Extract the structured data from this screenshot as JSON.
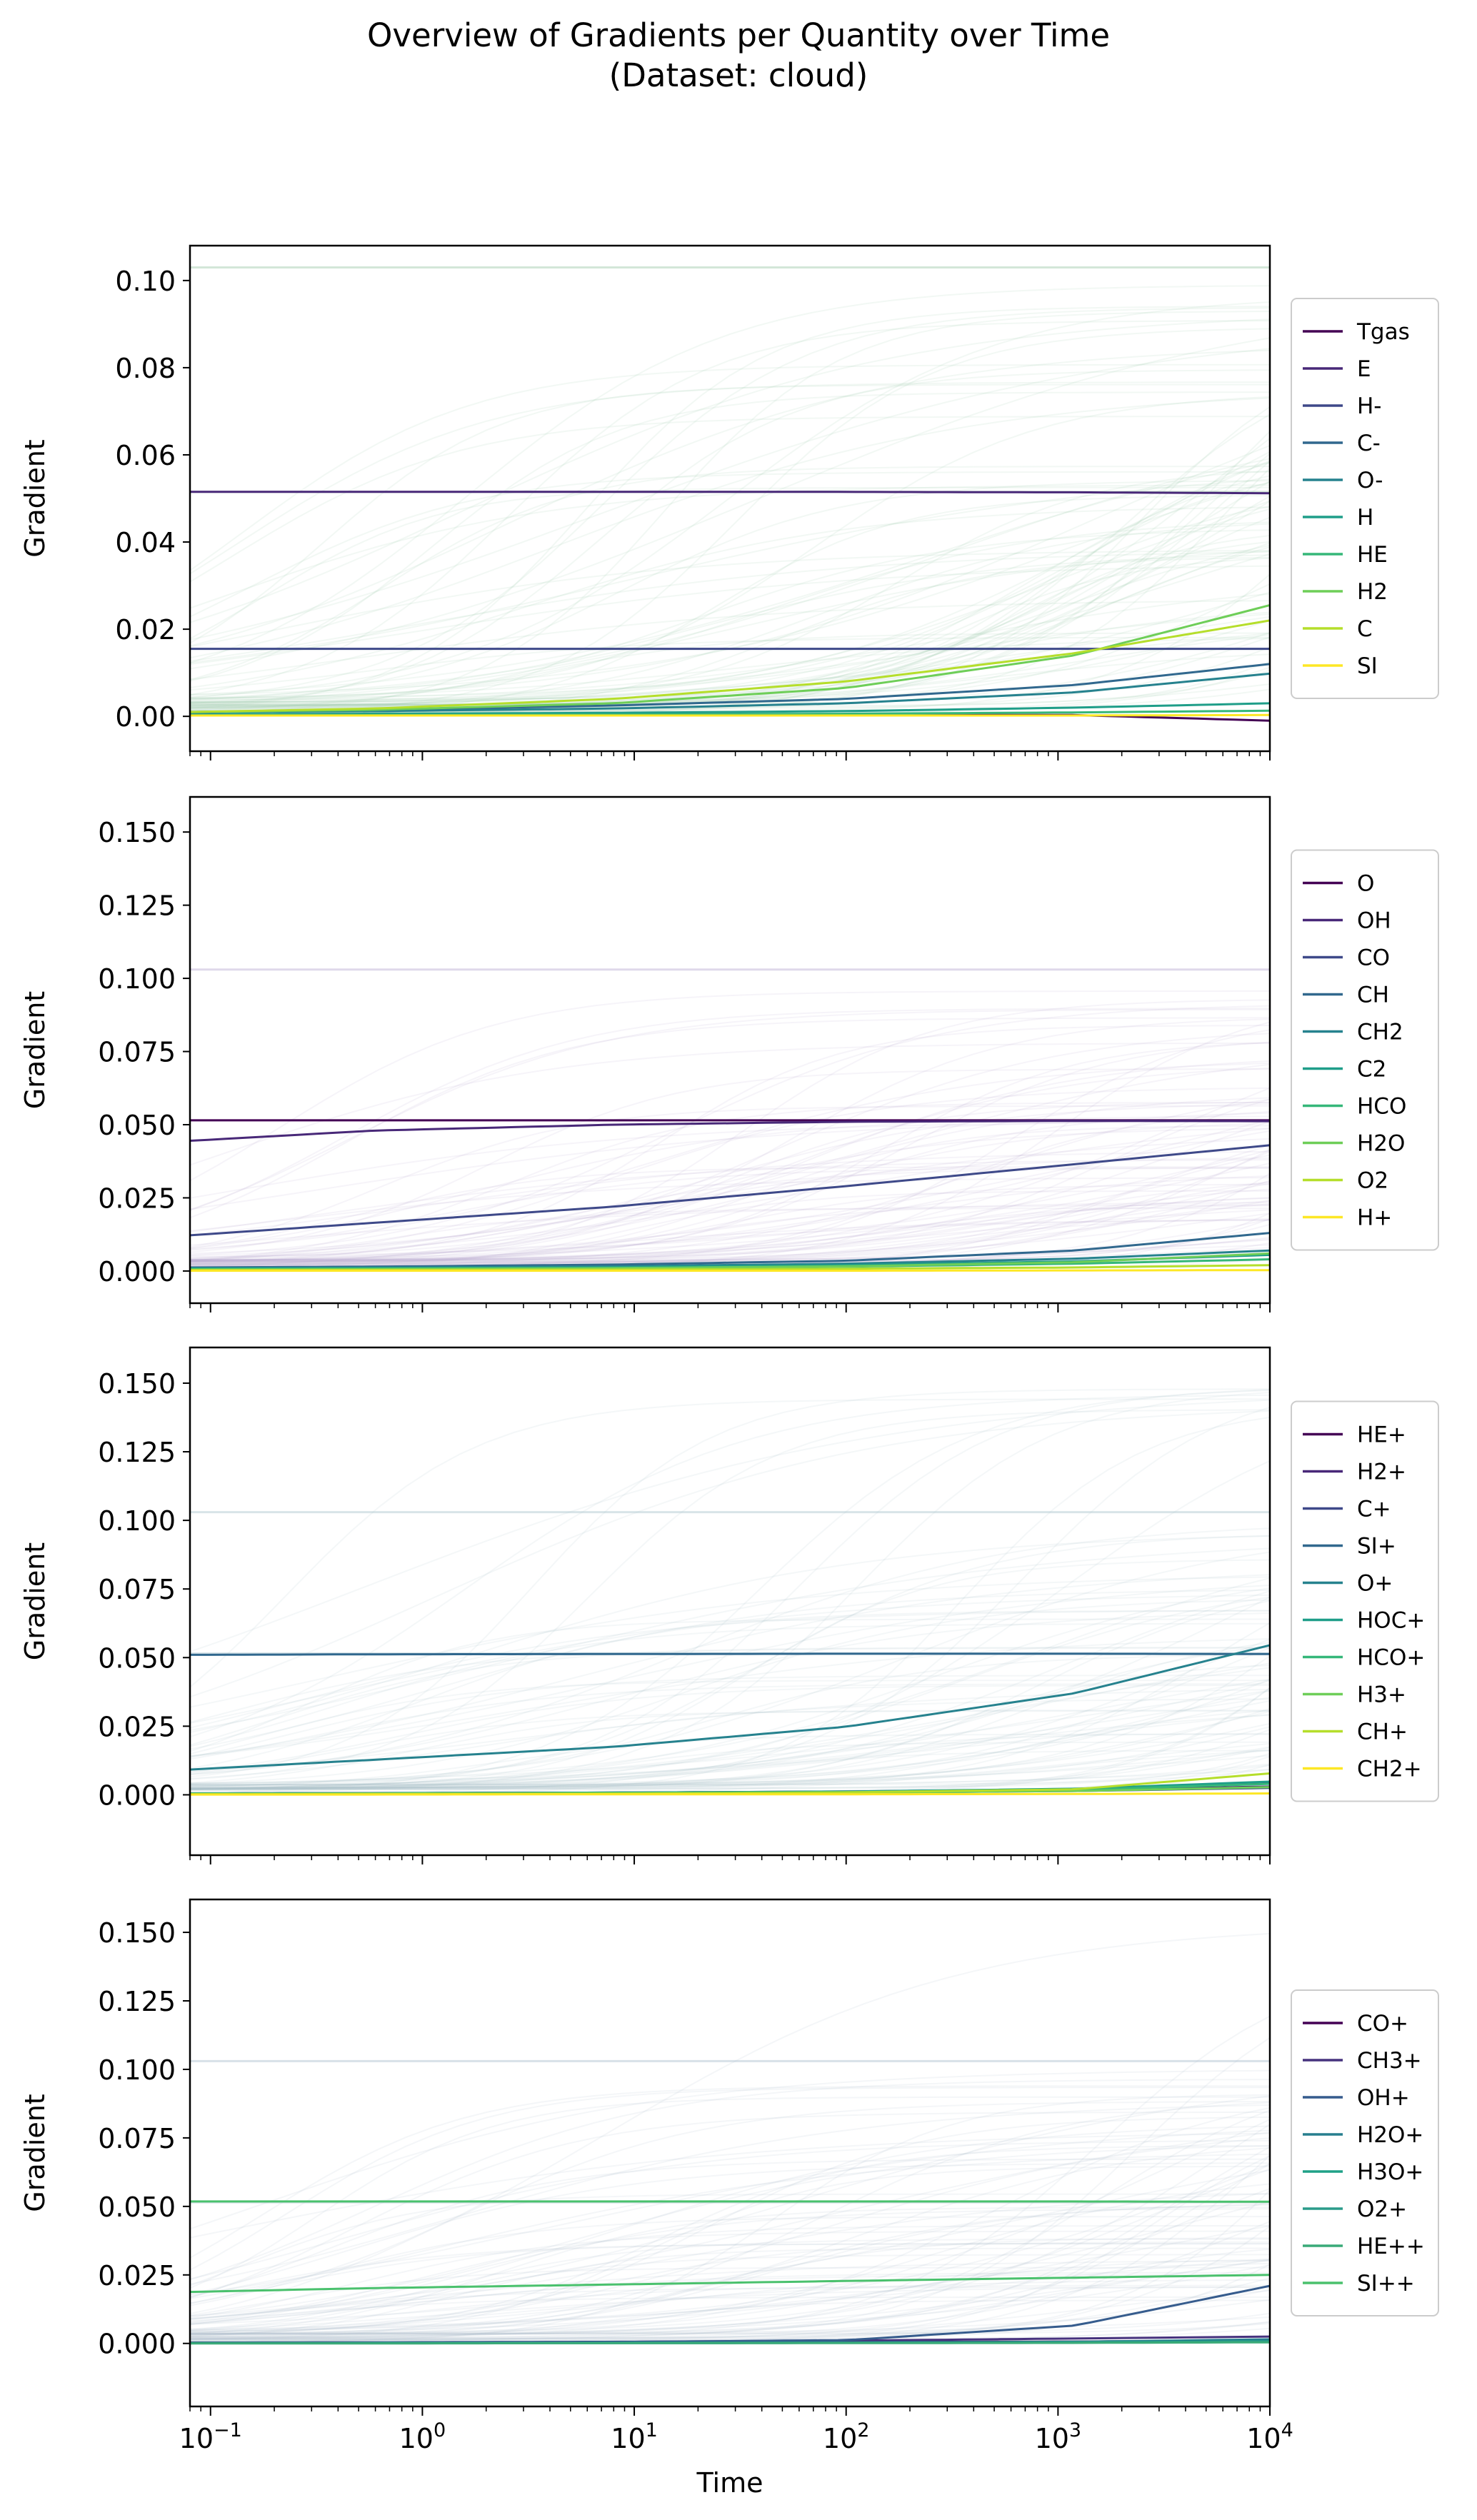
{
  "figure": {
    "title_line1": "Overview of Gradients per Quantity over Time",
    "title_line2": "(Dataset: cloud)",
    "xlabel": "Time",
    "ylabel": "Gradient",
    "x_scale": "log",
    "x_tick_exponents": [
      -1,
      0,
      1,
      2,
      3,
      4
    ],
    "x_tick_base": "10"
  },
  "chart_data": [
    {
      "type": "line",
      "xlim": [
        0.08,
        10000
      ],
      "ylim": [
        -0.008,
        0.108
      ],
      "yticks": [
        "0.00",
        "0.02",
        "0.04",
        "0.06",
        "0.08",
        "0.10"
      ],
      "ytick_values": [
        0,
        0.02,
        0.04,
        0.06,
        0.08,
        0.1
      ],
      "background_band_max": 0.103,
      "background_color": "#9ec8a8",
      "legend_position": "right",
      "series": [
        {
          "name": "Tgas",
          "color": "#440154",
          "values": [
            0.0005,
            0.0005,
            0.0005,
            0.0004,
            0.0003,
            -0.001
          ]
        },
        {
          "name": "E",
          "color": "#482878",
          "values": [
            0.0515,
            0.0515,
            0.0515,
            0.0515,
            0.0514,
            0.0512
          ]
        },
        {
          "name": "H-",
          "color": "#3e4989",
          "values": [
            0.0155,
            0.0155,
            0.0155,
            0.0155,
            0.0155,
            0.0155
          ]
        },
        {
          "name": "C-",
          "color": "#31688e",
          "values": [
            0.001,
            0.0014,
            0.0025,
            0.004,
            0.0072,
            0.012
          ]
        },
        {
          "name": "O-",
          "color": "#26828e",
          "values": [
            0.001,
            0.0012,
            0.0018,
            0.003,
            0.0055,
            0.0098
          ]
        },
        {
          "name": "H",
          "color": "#1f9e89",
          "values": [
            0.0005,
            0.0006,
            0.0008,
            0.0012,
            0.002,
            0.003
          ]
        },
        {
          "name": "HE",
          "color": "#35b779",
          "values": [
            0.0002,
            0.0003,
            0.0004,
            0.0006,
            0.0009,
            0.0013
          ]
        },
        {
          "name": "H2",
          "color": "#6ece58",
          "values": [
            0.001,
            0.0015,
            0.003,
            0.0065,
            0.014,
            0.0255
          ]
        },
        {
          "name": "C",
          "color": "#b5de2b",
          "values": [
            0.001,
            0.0018,
            0.004,
            0.008,
            0.0145,
            0.022
          ]
        },
        {
          "name": "SI",
          "color": "#fde725",
          "values": [
            0.0002,
            0.0002,
            0.0002,
            0.0002,
            0.0002,
            0.0003
          ]
        }
      ]
    },
    {
      "type": "line",
      "xlim": [
        0.08,
        10000
      ],
      "ylim": [
        -0.011,
        0.162
      ],
      "yticks": [
        "0.000",
        "0.025",
        "0.050",
        "0.075",
        "0.100",
        "0.125",
        "0.150"
      ],
      "ytick_values": [
        0,
        0.025,
        0.05,
        0.075,
        0.1,
        0.125,
        0.15
      ],
      "background_band_max": 0.103,
      "background_color": "#b9a8d0",
      "legend_position": "right",
      "series": [
        {
          "name": "O",
          "color": "#440154",
          "values": [
            0.0515,
            0.0515,
            0.0515,
            0.0515,
            0.0515,
            0.0515
          ]
        },
        {
          "name": "OH",
          "color": "#482878",
          "values": [
            0.0445,
            0.048,
            0.05,
            0.051,
            0.0513,
            0.0512
          ]
        },
        {
          "name": "CO",
          "color": "#3e4989",
          "values": [
            0.0122,
            0.0165,
            0.022,
            0.029,
            0.0365,
            0.043
          ]
        },
        {
          "name": "CH",
          "color": "#31688e",
          "values": [
            0.0012,
            0.0015,
            0.0022,
            0.0035,
            0.007,
            0.013
          ]
        },
        {
          "name": "CH2",
          "color": "#26828e",
          "values": [
            0.001,
            0.0012,
            0.0016,
            0.0025,
            0.0042,
            0.007
          ]
        },
        {
          "name": "C2",
          "color": "#1f9e89",
          "values": [
            0.0008,
            0.001,
            0.0013,
            0.002,
            0.0033,
            0.0055
          ]
        },
        {
          "name": "HCO",
          "color": "#35b779",
          "values": [
            0.0006,
            0.0008,
            0.001,
            0.0015,
            0.0025,
            0.004
          ]
        },
        {
          "name": "H2O",
          "color": "#6ece58",
          "values": [
            0.0005,
            0.0007,
            0.001,
            0.0016,
            0.003,
            0.006
          ]
        },
        {
          "name": "O2",
          "color": "#b5de2b",
          "values": [
            0.0003,
            0.0004,
            0.0005,
            0.0008,
            0.0012,
            0.002
          ]
        },
        {
          "name": "H+",
          "color": "#fde725",
          "values": [
            0.0001,
            0.0001,
            0.0001,
            0.0001,
            0.0002,
            0.0003
          ]
        }
      ]
    },
    {
      "type": "line",
      "xlim": [
        0.08,
        10000
      ],
      "ylim": [
        -0.022,
        0.163
      ],
      "yticks": [
        "0.000",
        "0.025",
        "0.050",
        "0.075",
        "0.100",
        "0.125",
        "0.150"
      ],
      "ytick_values": [
        0,
        0.025,
        0.05,
        0.075,
        0.1,
        0.125,
        0.15
      ],
      "background_band_max": 0.103,
      "background_color": "#a8c4cc",
      "legend_position": "right",
      "series": [
        {
          "name": "HE+",
          "color": "#440154",
          "values": [
            0.0005,
            0.0006,
            0.0008,
            0.0012,
            0.002,
            0.0045
          ]
        },
        {
          "name": "H2+",
          "color": "#482878",
          "values": [
            0.0004,
            0.0005,
            0.0006,
            0.001,
            0.0018,
            0.003
          ]
        },
        {
          "name": "C+",
          "color": "#3e4989",
          "values": [
            0.0003,
            0.0004,
            0.0005,
            0.0008,
            0.0014,
            0.0025
          ]
        },
        {
          "name": "SI+",
          "color": "#31688e",
          "values": [
            0.051,
            0.0512,
            0.0513,
            0.0514,
            0.0514,
            0.0513
          ]
        },
        {
          "name": "O+",
          "color": "#26828e",
          "values": [
            0.0092,
            0.0128,
            0.0175,
            0.0248,
            0.037,
            0.0545
          ]
        },
        {
          "name": "HOC+",
          "color": "#1f9e89",
          "values": [
            0.0005,
            0.0006,
            0.0008,
            0.0012,
            0.0022,
            0.0048
          ]
        },
        {
          "name": "HCO+",
          "color": "#35b779",
          "values": [
            0.0004,
            0.0005,
            0.0007,
            0.001,
            0.0018,
            0.004
          ]
        },
        {
          "name": "H3+",
          "color": "#6ece58",
          "values": [
            0.0003,
            0.0004,
            0.0005,
            0.0008,
            0.0014,
            0.0028
          ]
        },
        {
          "name": "CH+",
          "color": "#b5de2b",
          "values": [
            0.0002,
            0.0003,
            0.0004,
            0.0009,
            0.002,
            0.0078
          ]
        },
        {
          "name": "CH2+",
          "color": "#fde725",
          "values": [
            0.0001,
            0.0001,
            0.0002,
            0.0002,
            0.0003,
            0.0005
          ]
        }
      ]
    },
    {
      "type": "line",
      "xlim": [
        0.08,
        10000
      ],
      "ylim": [
        -0.023,
        0.162
      ],
      "yticks": [
        "0.000",
        "0.025",
        "0.050",
        "0.075",
        "0.100",
        "0.125",
        "0.150"
      ],
      "ytick_values": [
        0,
        0.025,
        0.05,
        0.075,
        0.1,
        0.125,
        0.15
      ],
      "background_band_max": 0.103,
      "background_color": "#a8bccc",
      "legend_position": "right",
      "series": [
        {
          "name": "CO+",
          "color": "#440154",
          "values": [
            0.0003,
            0.0003,
            0.0004,
            0.0005,
            0.0007,
            0.001
          ]
        },
        {
          "name": "CH3+",
          "color": "#46327e",
          "values": [
            0.0003,
            0.0004,
            0.0006,
            0.001,
            0.0018,
            0.0025
          ]
        },
        {
          "name": "OH+",
          "color": "#365c8d",
          "values": [
            0.0002,
            0.0003,
            0.0005,
            0.0012,
            0.0065,
            0.021
          ]
        },
        {
          "name": "H2O+",
          "color": "#277f8e",
          "values": [
            0.0002,
            0.0002,
            0.0003,
            0.0004,
            0.0006,
            0.0015
          ]
        },
        {
          "name": "H3O+",
          "color": "#1fa187",
          "values": [
            0.0001,
            0.0001,
            0.0001,
            0.0002,
            0.0004,
            0.0008
          ]
        },
        {
          "name": "O2+",
          "color": "#2a9b8a",
          "values": [
            0.0001,
            0.0001,
            0.0001,
            0.0002,
            0.0003,
            0.0006
          ]
        },
        {
          "name": "HE++",
          "color": "#3aaa78",
          "values": [
            0.0,
            0.0,
            0.0001,
            0.0001,
            0.0002,
            0.0004
          ]
        },
        {
          "name": "SI++",
          "color": "#4ac16d",
          "values": [
            0.0188,
            0.0202,
            0.0215,
            0.0228,
            0.024,
            0.025
          ]
        }
      ],
      "extra_lines": [
        {
          "color": "#4ac16d",
          "values": [
            0.0518,
            0.0518,
            0.0518,
            0.0518,
            0.0518,
            0.0517
          ]
        }
      ]
    }
  ]
}
